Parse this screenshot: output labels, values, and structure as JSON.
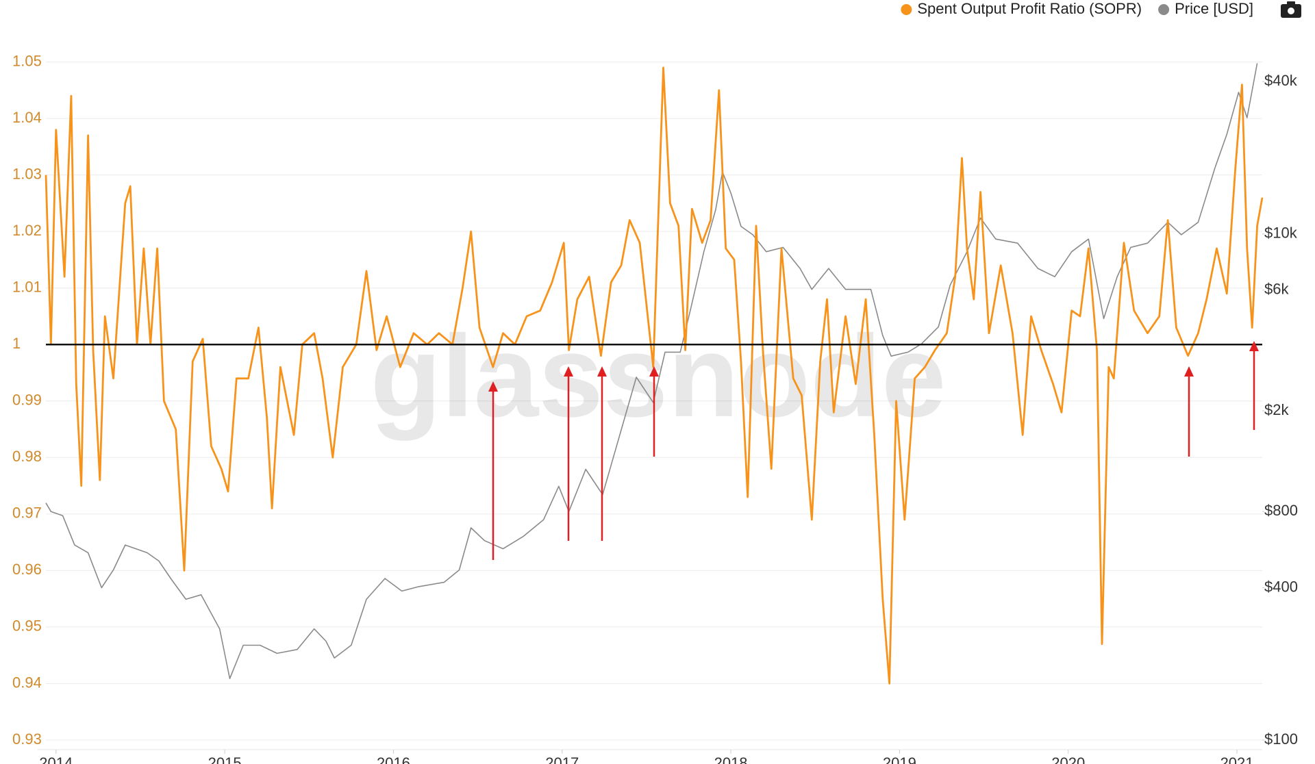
{
  "chart_data": {
    "type": "line",
    "watermark": "glassnode",
    "legend": "top-right",
    "grid": true,
    "xlim": [
      2013.94,
      2021.15
    ],
    "xticks": [
      2014,
      2015,
      2016,
      2017,
      2018,
      2019,
      2020,
      2021
    ],
    "ylim": [
      0.93,
      1.06
    ],
    "yticks": [
      0.93,
      0.94,
      0.95,
      0.96,
      0.97,
      0.98,
      0.99,
      1,
      1.01,
      1.02,
      1.03,
      1.04,
      1.05
    ],
    "y2lim": [
      100,
      80000
    ],
    "y2log": true,
    "y2ticks": [
      {
        "value": 100,
        "label": "$100"
      },
      {
        "value": 400,
        "label": "$400"
      },
      {
        "value": 800,
        "label": "$800"
      },
      {
        "value": 2000,
        "label": "$2k"
      },
      {
        "value": 6000,
        "label": "$6k"
      },
      {
        "value": 10000,
        "label": "$10k"
      },
      {
        "value": 40000,
        "label": "$40k"
      }
    ],
    "hline": 1,
    "series": [
      {
        "name": "Spent Output Profit Ratio (SOPR)",
        "color": "#f7931a",
        "x": [
          2013.94,
          2013.97,
          2014.0,
          2014.05,
          2014.09,
          2014.12,
          2014.15,
          2014.19,
          2014.22,
          2014.26,
          2014.29,
          2014.34,
          2014.41,
          2014.44,
          2014.48,
          2014.52,
          2014.56,
          2014.6,
          2014.64,
          2014.71,
          2014.76,
          2014.81,
          2014.87,
          2014.92,
          2014.98,
          2015.02,
          2015.07,
          2015.14,
          2015.2,
          2015.25,
          2015.28,
          2015.33,
          2015.41,
          2015.46,
          2015.53,
          2015.58,
          2015.64,
          2015.7,
          2015.78,
          2015.84,
          2015.9,
          2015.96,
          2016.04,
          2016.12,
          2016.2,
          2016.27,
          2016.35,
          2016.41,
          2016.46,
          2016.51,
          2016.59,
          2016.65,
          2016.72,
          2016.79,
          2016.87,
          2016.94,
          2017.01,
          2017.04,
          2017.09,
          2017.16,
          2017.23,
          2017.29,
          2017.35,
          2017.4,
          2017.46,
          2017.54,
          2017.6,
          2017.64,
          2017.69,
          2017.73,
          2017.77,
          2017.83,
          2017.88,
          2017.93,
          2017.97,
          2018.02,
          2018.06,
          2018.1,
          2018.15,
          2018.19,
          2018.24,
          2018.3,
          2018.37,
          2018.42,
          2018.48,
          2018.53,
          2018.57,
          2018.61,
          2018.68,
          2018.74,
          2018.8,
          2018.85,
          2018.9,
          2018.94,
          2018.98,
          2019.03,
          2019.09,
          2019.15,
          2019.21,
          2019.28,
          2019.33,
          2019.37,
          2019.4,
          2019.44,
          2019.48,
          2019.53,
          2019.6,
          2019.67,
          2019.73,
          2019.78,
          2019.84,
          2019.91,
          2019.96,
          2020.02,
          2020.07,
          2020.12,
          2020.17,
          2020.2,
          2020.24,
          2020.27,
          2020.33,
          2020.39,
          2020.47,
          2020.54,
          2020.59,
          2020.64,
          2020.71,
          2020.77,
          2020.82,
          2020.88,
          2020.94,
          2020.99,
          2021.03,
          2021.06,
          2021.09,
          2021.12,
          2021.15
        ],
        "values": [
          1.03,
          1.0,
          1.038,
          1.012,
          1.044,
          0.993,
          0.975,
          1.037,
          0.999,
          0.976,
          1.005,
          0.994,
          1.025,
          1.028,
          1.0,
          1.017,
          1.0,
          1.017,
          0.99,
          0.985,
          0.96,
          0.997,
          1.001,
          0.982,
          0.978,
          0.974,
          0.994,
          0.994,
          1.003,
          0.987,
          0.971,
          0.996,
          0.984,
          1.0,
          1.002,
          0.994,
          0.98,
          0.996,
          1.0,
          1.013,
          0.999,
          1.005,
          0.996,
          1.002,
          1.0,
          1.002,
          1.0,
          1.01,
          1.02,
          1.003,
          0.996,
          1.002,
          1.0,
          1.005,
          1.006,
          1.011,
          1.018,
          0.999,
          1.008,
          1.012,
          0.998,
          1.011,
          1.014,
          1.022,
          1.018,
          0.996,
          1.049,
          1.025,
          1.021,
          0.999,
          1.024,
          1.018,
          1.022,
          1.045,
          1.017,
          1.015,
          0.997,
          0.973,
          1.021,
          0.999,
          0.978,
          1.017,
          0.994,
          0.991,
          0.969,
          0.997,
          1.008,
          0.988,
          1.005,
          0.993,
          1.008,
          0.984,
          0.955,
          0.94,
          0.99,
          0.969,
          0.994,
          0.996,
          0.999,
          1.002,
          1.012,
          1.033,
          1.017,
          1.008,
          1.027,
          1.002,
          1.014,
          1.002,
          0.984,
          1.005,
          0.999,
          0.993,
          0.988,
          1.006,
          1.005,
          1.017,
          0.999,
          0.947,
          0.996,
          0.994,
          1.018,
          1.006,
          1.002,
          1.005,
          1.022,
          1.003,
          0.998,
          1.002,
          1.008,
          1.017,
          1.009,
          1.031,
          1.046,
          1.017,
          1.003,
          1.021,
          1.026
        ]
      },
      {
        "name": "Price [USD]",
        "color": "#8a8a8a",
        "axis": "y2",
        "x": [
          2013.94,
          2013.97,
          2014.04,
          2014.11,
          2014.19,
          2014.27,
          2014.34,
          2014.41,
          2014.54,
          2014.61,
          2014.68,
          2014.77,
          2014.86,
          2014.97,
          2015.03,
          2015.11,
          2015.21,
          2015.31,
          2015.43,
          2015.53,
          2015.6,
          2015.65,
          2015.75,
          2015.84,
          2015.95,
          2016.05,
          2016.15,
          2016.3,
          2016.39,
          2016.46,
          2016.54,
          2016.65,
          2016.77,
          2016.89,
          2016.98,
          2017.04,
          2017.14,
          2017.24,
          2017.34,
          2017.44,
          2017.54,
          2017.61,
          2017.7,
          2017.76,
          2017.84,
          2017.91,
          2017.95,
          2018.0,
          2018.06,
          2018.13,
          2018.21,
          2018.31,
          2018.41,
          2018.48,
          2018.58,
          2018.68,
          2018.83,
          2018.9,
          2018.95,
          2019.05,
          2019.13,
          2019.23,
          2019.3,
          2019.4,
          2019.48,
          2019.57,
          2019.7,
          2019.82,
          2019.92,
          2020.02,
          2020.12,
          2020.21,
          2020.29,
          2020.37,
          2020.47,
          2020.59,
          2020.67,
          2020.77,
          2020.87,
          2020.94,
          2021.01,
          2021.06,
          2021.12
        ],
        "values": [
          865,
          800,
          770,
          590,
          550,
          400,
          470,
          590,
          550,
          510,
          435,
          360,
          375,
          275,
          175,
          237,
          237,
          220,
          228,
          275,
          246,
          211,
          237,
          360,
          435,
          388,
          404,
          420,
          470,
          690,
          614,
          570,
          638,
          743,
          1007,
          800,
          1175,
          934,
          1592,
          2717,
          2158,
          3412,
          3412,
          5000,
          8511,
          12470,
          17580,
          14520,
          10720,
          9930,
          8511,
          8850,
          7310,
          6040,
          7310,
          6040,
          6040,
          3970,
          3290,
          3412,
          3680,
          4290,
          6280,
          8511,
          11560,
          9550,
          9200,
          7310,
          6780,
          8511,
          9550,
          4630,
          6780,
          8850,
          9200,
          11120,
          9930,
          11120,
          18280,
          24800,
          36300,
          28800,
          47300
        ]
      }
    ]
  }
}
